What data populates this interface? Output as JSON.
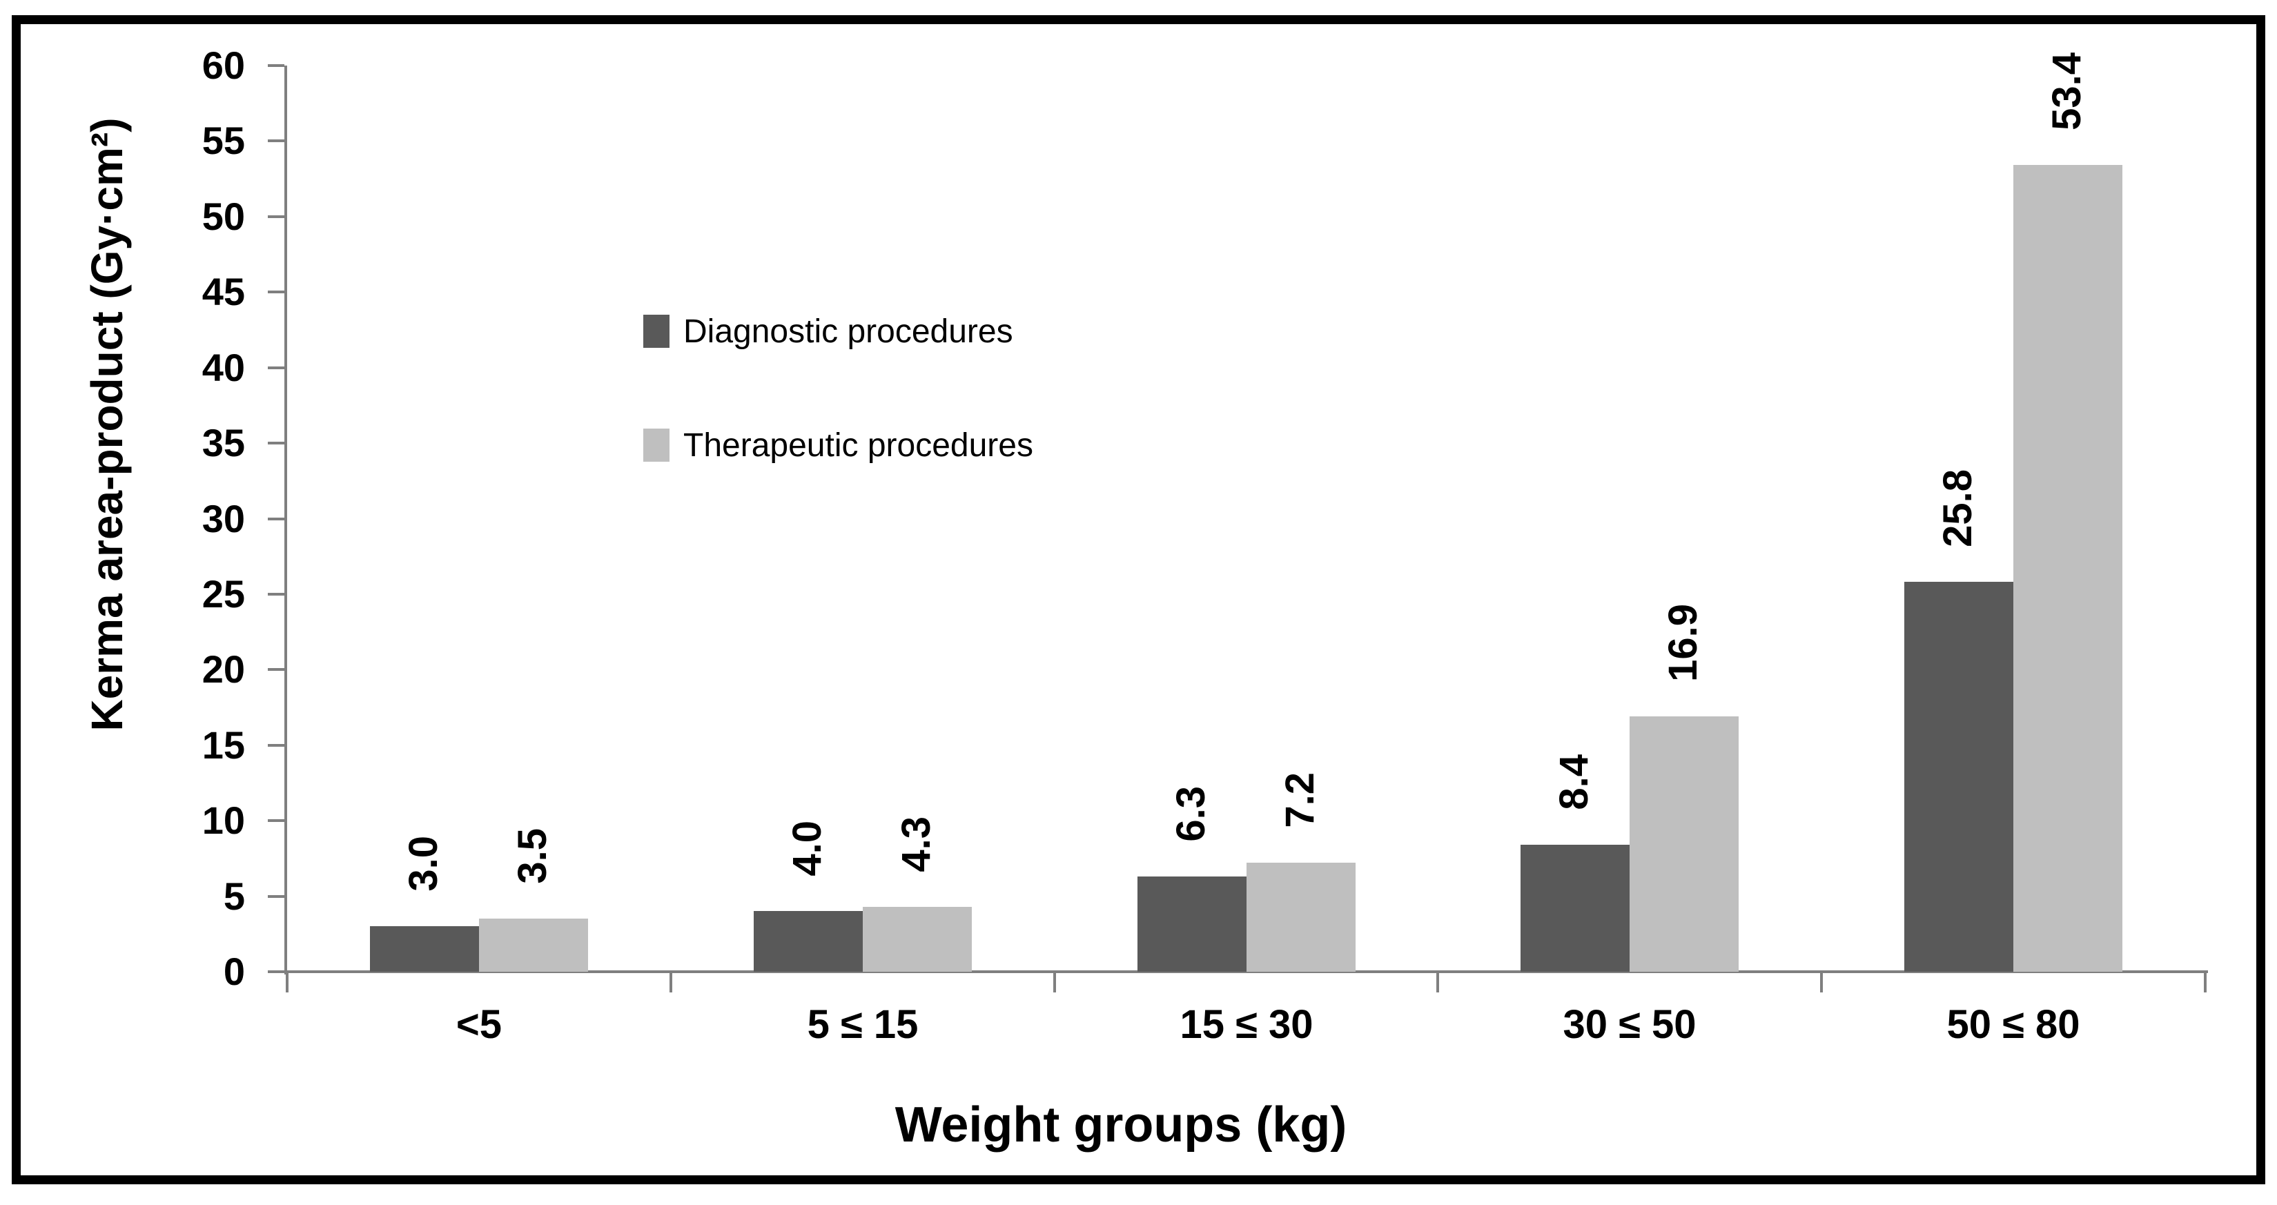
{
  "chart_data": {
    "type": "bar",
    "title": "",
    "xlabel": "Weight groups (kg)",
    "ylabel": "Kerma area-product (Gy·cm²)",
    "categories": [
      "<5",
      "5 ≤ 15",
      "15 ≤ 30",
      "30 ≤ 50",
      "50 ≤ 80"
    ],
    "series": [
      {
        "name": "Diagnostic procedures",
        "color": "#595959",
        "values": [
          3.0,
          4.0,
          6.3,
          8.4,
          25.8
        ],
        "value_labels": [
          "3.0",
          "4.0",
          "6.3",
          "8.4",
          "25.8"
        ]
      },
      {
        "name": "Therapeutic procedures",
        "color": "#bfbfbf",
        "values": [
          3.5,
          4.3,
          7.2,
          16.9,
          53.4
        ],
        "value_labels": [
          "3.5",
          "4.3",
          "7.2",
          "16.9",
          "53.4"
        ]
      }
    ],
    "ylim": [
      0,
      60
    ],
    "ytick_step": 5,
    "yticks": [
      0,
      5,
      10,
      15,
      20,
      25,
      30,
      35,
      40,
      45,
      50,
      55,
      60
    ],
    "grid": false,
    "legend_position": "inside-upper-left",
    "data_labels_rotated": true,
    "colors": {
      "axis": "#7f7f7f",
      "text": "#000000",
      "background": "#ffffff",
      "frame_border": "#000000"
    }
  }
}
